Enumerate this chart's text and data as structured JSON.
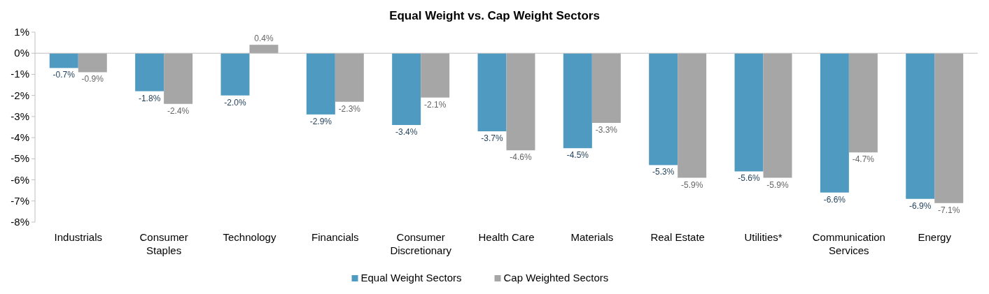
{
  "chart_data": {
    "type": "bar",
    "title": "Equal Weight vs. Cap Weight Sectors",
    "categories": [
      "Industrials",
      "Consumer Staples",
      "Technology",
      "Financials",
      "Consumer Discretionary",
      "Health Care",
      "Materials",
      "Real Estate",
      "Utilities*",
      "Communication Services",
      "Energy"
    ],
    "series": [
      {
        "name": "Equal Weight Sectors",
        "color": "#4f9ac0",
        "values": [
          -0.7,
          -1.8,
          -2.0,
          -2.9,
          -3.4,
          -3.7,
          -4.5,
          -5.3,
          -5.6,
          -6.6,
          -6.9
        ],
        "value_labels": [
          "-0.7%",
          "-1.8%",
          "-2.0%",
          "-2.9%",
          "-3.4%",
          "-3.7%",
          "-4.5%",
          "-5.3%",
          "-5.6%",
          "-6.6%",
          "-6.9%"
        ]
      },
      {
        "name": "Cap Weighted Sectors",
        "color": "#a6a6a6",
        "values": [
          -0.9,
          -2.4,
          0.4,
          -2.3,
          -2.1,
          -4.6,
          -3.3,
          -5.9,
          -5.9,
          -4.7,
          -7.1
        ],
        "value_labels": [
          "-0.9%",
          "-2.4%",
          "0.4%",
          "-2.3%",
          "-2.1%",
          "-4.6%",
          "-3.3%",
          "-5.9%",
          "-5.9%",
          "-4.7%",
          "-7.1%"
        ]
      }
    ],
    "ylim": [
      -8,
      1
    ],
    "yticks": [
      {
        "value": 1,
        "label": "1%"
      },
      {
        "value": 0,
        "label": "0%"
      },
      {
        "value": -1,
        "label": "-1%"
      },
      {
        "value": -2,
        "label": "-2%"
      },
      {
        "value": -3,
        "label": "-3%"
      },
      {
        "value": -4,
        "label": "-4%"
      },
      {
        "value": -5,
        "label": "-5%"
      },
      {
        "value": -6,
        "label": "-6%"
      },
      {
        "value": -7,
        "label": "-7%"
      },
      {
        "value": -8,
        "label": "-8%"
      }
    ],
    "legend": "bottom"
  }
}
